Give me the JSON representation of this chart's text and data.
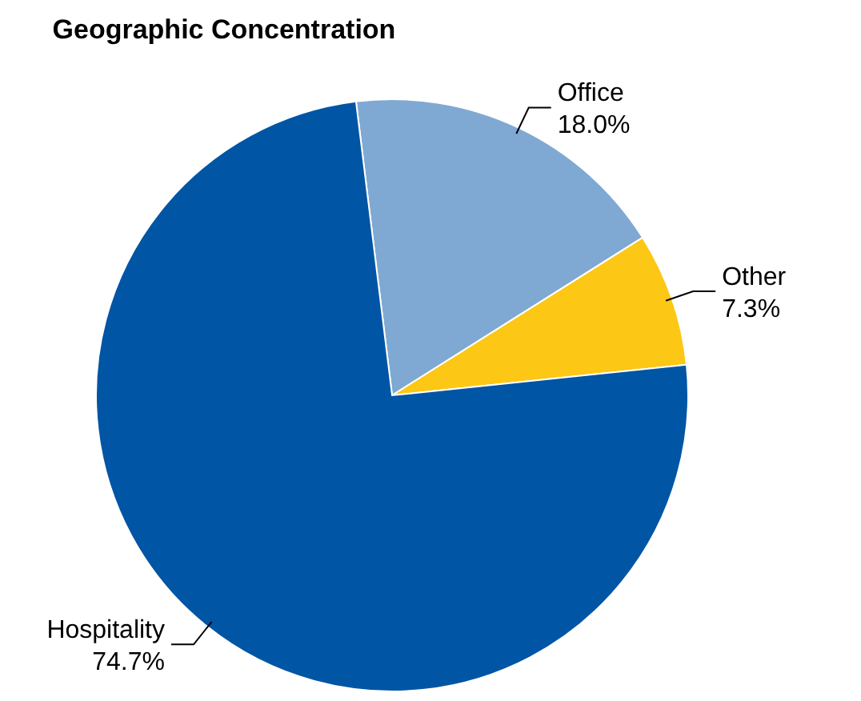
{
  "chart_data": {
    "type": "pie",
    "title": "Geographic Concentration",
    "categories": [
      "Office",
      "Other",
      "Hospitality"
    ],
    "values": [
      18.0,
      7.3,
      74.7
    ],
    "value_labels": [
      "18.0%",
      "7.3%",
      "74.7%"
    ],
    "colors": [
      "#7fa9d2",
      "#fcc715",
      "#0055a4"
    ],
    "legend": false
  }
}
